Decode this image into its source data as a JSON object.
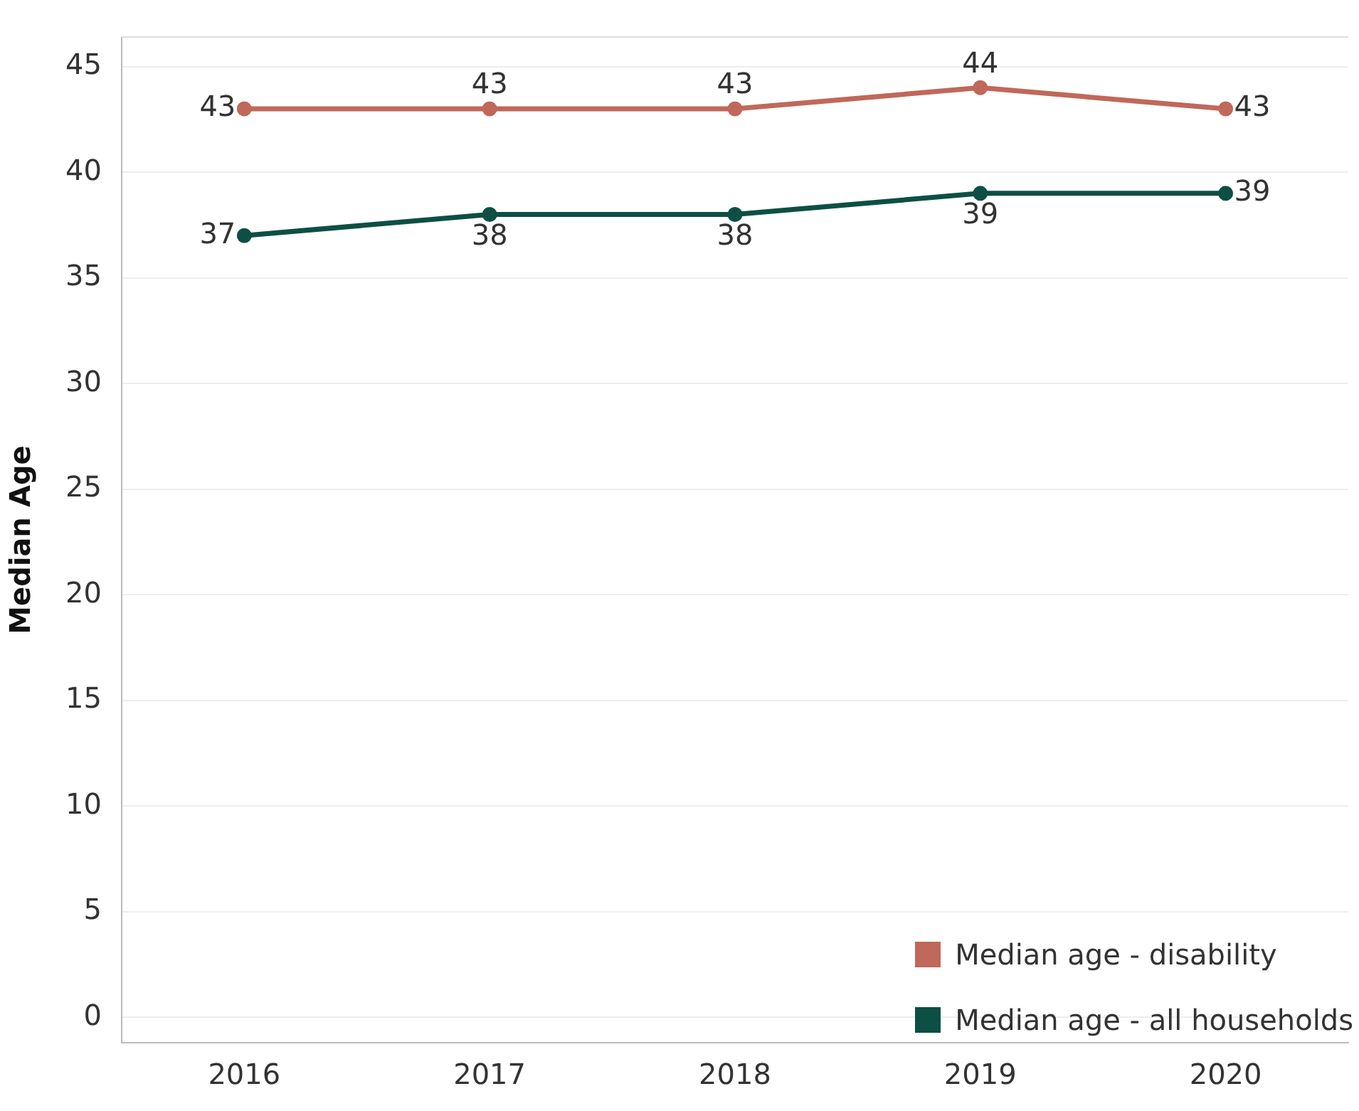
{
  "chart_data": {
    "type": "line",
    "ylabel": "Median Age",
    "categories": [
      "2016",
      "2017",
      "2018",
      "2019",
      "2020"
    ],
    "series": [
      {
        "name": "Median age - disability",
        "color": "#c0685a",
        "values": [
          43,
          43,
          43,
          44,
          43
        ]
      },
      {
        "name": "Median age - all households",
        "color": "#0d4f44",
        "values": [
          37,
          38,
          38,
          39,
          39
        ]
      }
    ],
    "ylim": [
      -1.2,
      46.4
    ],
    "yticks": [
      0,
      5,
      10,
      15,
      20,
      25,
      30,
      35,
      40,
      45
    ],
    "grid": "y",
    "legend": "bottom right",
    "marker": "circle",
    "line_style": "solid",
    "data_labels": true
  }
}
